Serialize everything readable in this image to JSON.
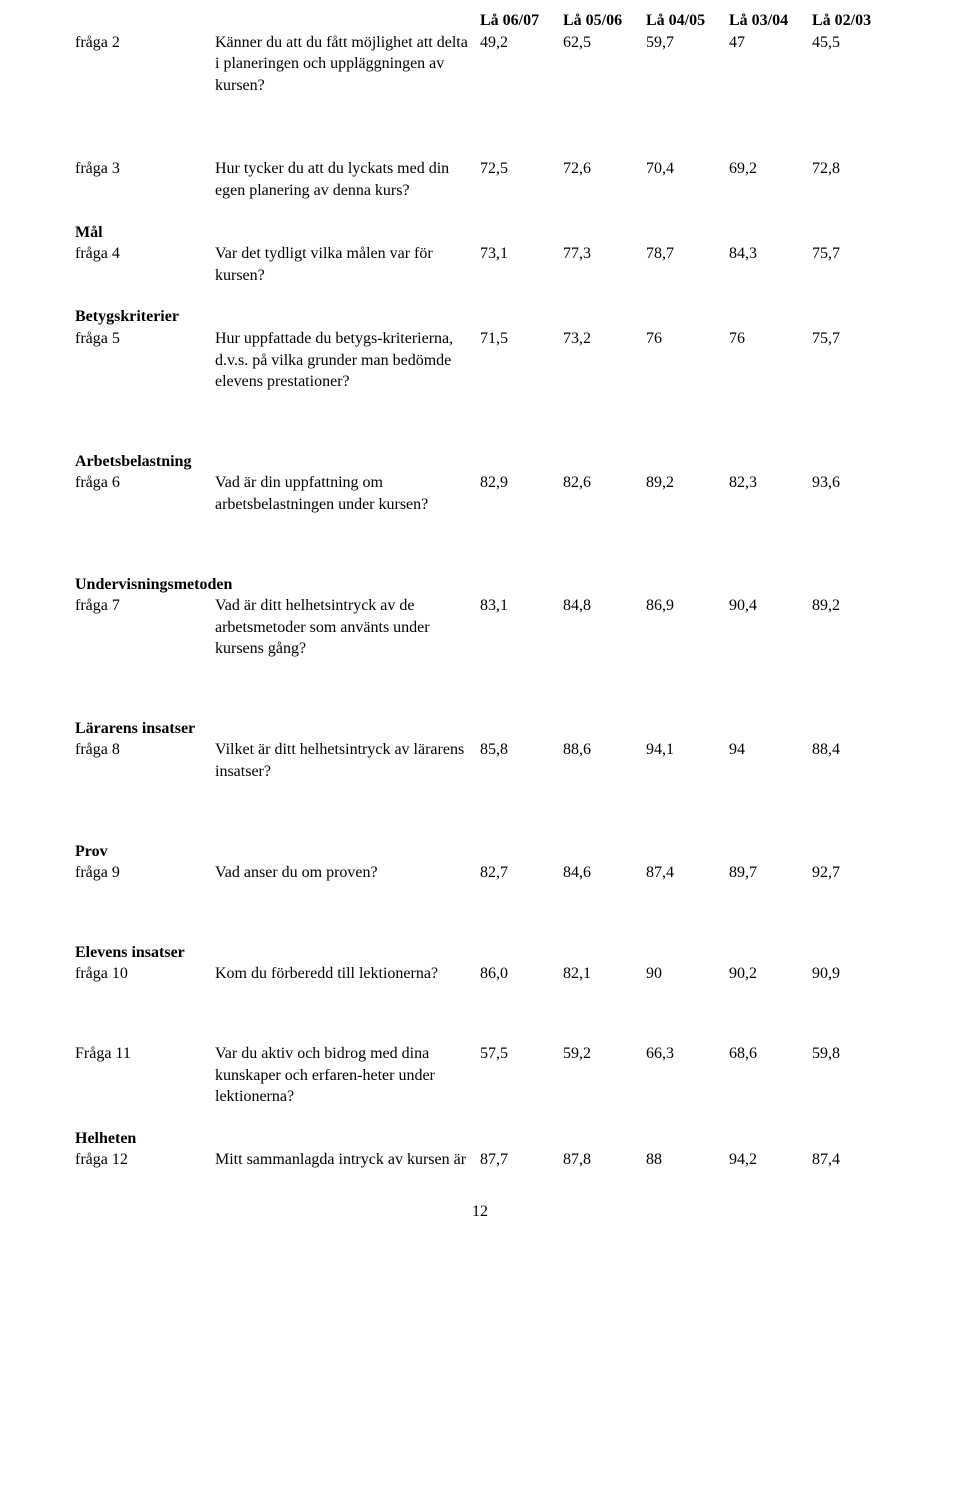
{
  "headers": {
    "c1": "Lå 06/07",
    "c2": "Lå 05/06",
    "c3": "Lå 04/05",
    "c4": "Lå 03/04",
    "c5": "Lå 02/03"
  },
  "r2": {
    "label": "fråga 2",
    "desc": "Känner du att du fått möjlighet att delta i planeringen och uppläggningen av kursen?",
    "v1": "49,2",
    "v2": "62,5",
    "v3": "59,7",
    "v4": "47",
    "v5": "45,5"
  },
  "r3": {
    "label": "fråga 3",
    "desc": "Hur tycker du att du lyckats med din egen planering av denna kurs?",
    "v1": "72,5",
    "v2": "72,6",
    "v3": "70,4",
    "v4": "69,2",
    "v5": "72,8"
  },
  "s_mal": "Mål",
  "r4": {
    "label": "fråga 4",
    "desc": "Var det tydligt vilka målen var för kursen?",
    "v1": "73,1",
    "v2": "77,3",
    "v3": "78,7",
    "v4": "84,3",
    "v5": "75,7"
  },
  "s_betyg": "Betygskriterier",
  "r5": {
    "label": "fråga 5",
    "desc": "Hur uppfattade du betygs-kriterierna, d.v.s. på vilka grunder man bedömde elevens prestationer?",
    "v1": "71,5",
    "v2": "73,2",
    "v3": "76",
    "v4": "76",
    "v5": "75,7"
  },
  "s_arbets": "Arbetsbelastning",
  "r6": {
    "label": "fråga 6",
    "desc": "Vad är din uppfattning om arbetsbelastningen under kursen?",
    "v1": "82,9",
    "v2": "82,6",
    "v3": "89,2",
    "v4": "82,3",
    "v5": "93,6"
  },
  "s_underv": "Undervisningsmetoden",
  "r7": {
    "label": "fråga 7",
    "desc": "Vad är ditt helhetsintryck av de arbetsmetoder som använts under kursens gång?",
    "v1": "83,1",
    "v2": "84,8",
    "v3": "86,9",
    "v4": "90,4",
    "v5": "89,2"
  },
  "s_larar": "Lärarens insatser",
  "r8": {
    "label": "fråga 8",
    "desc": "Vilket är ditt helhetsintryck av lärarens insatser?",
    "v1": "85,8",
    "v2": "88,6",
    "v3": "94,1",
    "v4": "94",
    "v5": "88,4"
  },
  "s_prov": "Prov",
  "r9": {
    "label": "fråga 9",
    "desc": "Vad anser du om proven?",
    "v1": "82,7",
    "v2": "84,6",
    "v3": "87,4",
    "v4": "89,7",
    "v5": "92,7"
  },
  "s_elev": "Elevens insatser",
  "r10": {
    "label": "fråga 10",
    "desc": "Kom du förberedd till lektionerna?",
    "v1": "86,0",
    "v2": "82,1",
    "v3": "90",
    "v4": "90,2",
    "v5": "90,9"
  },
  "r11": {
    "label": "Fråga 11",
    "desc": "Var du aktiv och bidrog med dina kunskaper och erfaren-heter under lektionerna?",
    "v1": "57,5",
    "v2": "59,2",
    "v3": "66,3",
    "v4": "68,6",
    "v5": "59,8"
  },
  "s_hel": "Helheten",
  "r12": {
    "label": "fråga 12",
    "desc": "Mitt sammanlagda intryck av kursen är",
    "v1": "87,7",
    "v2": "87,8",
    "v3": "88",
    "v4": "94,2",
    "v5": "87,4"
  },
  "page_num": "12"
}
